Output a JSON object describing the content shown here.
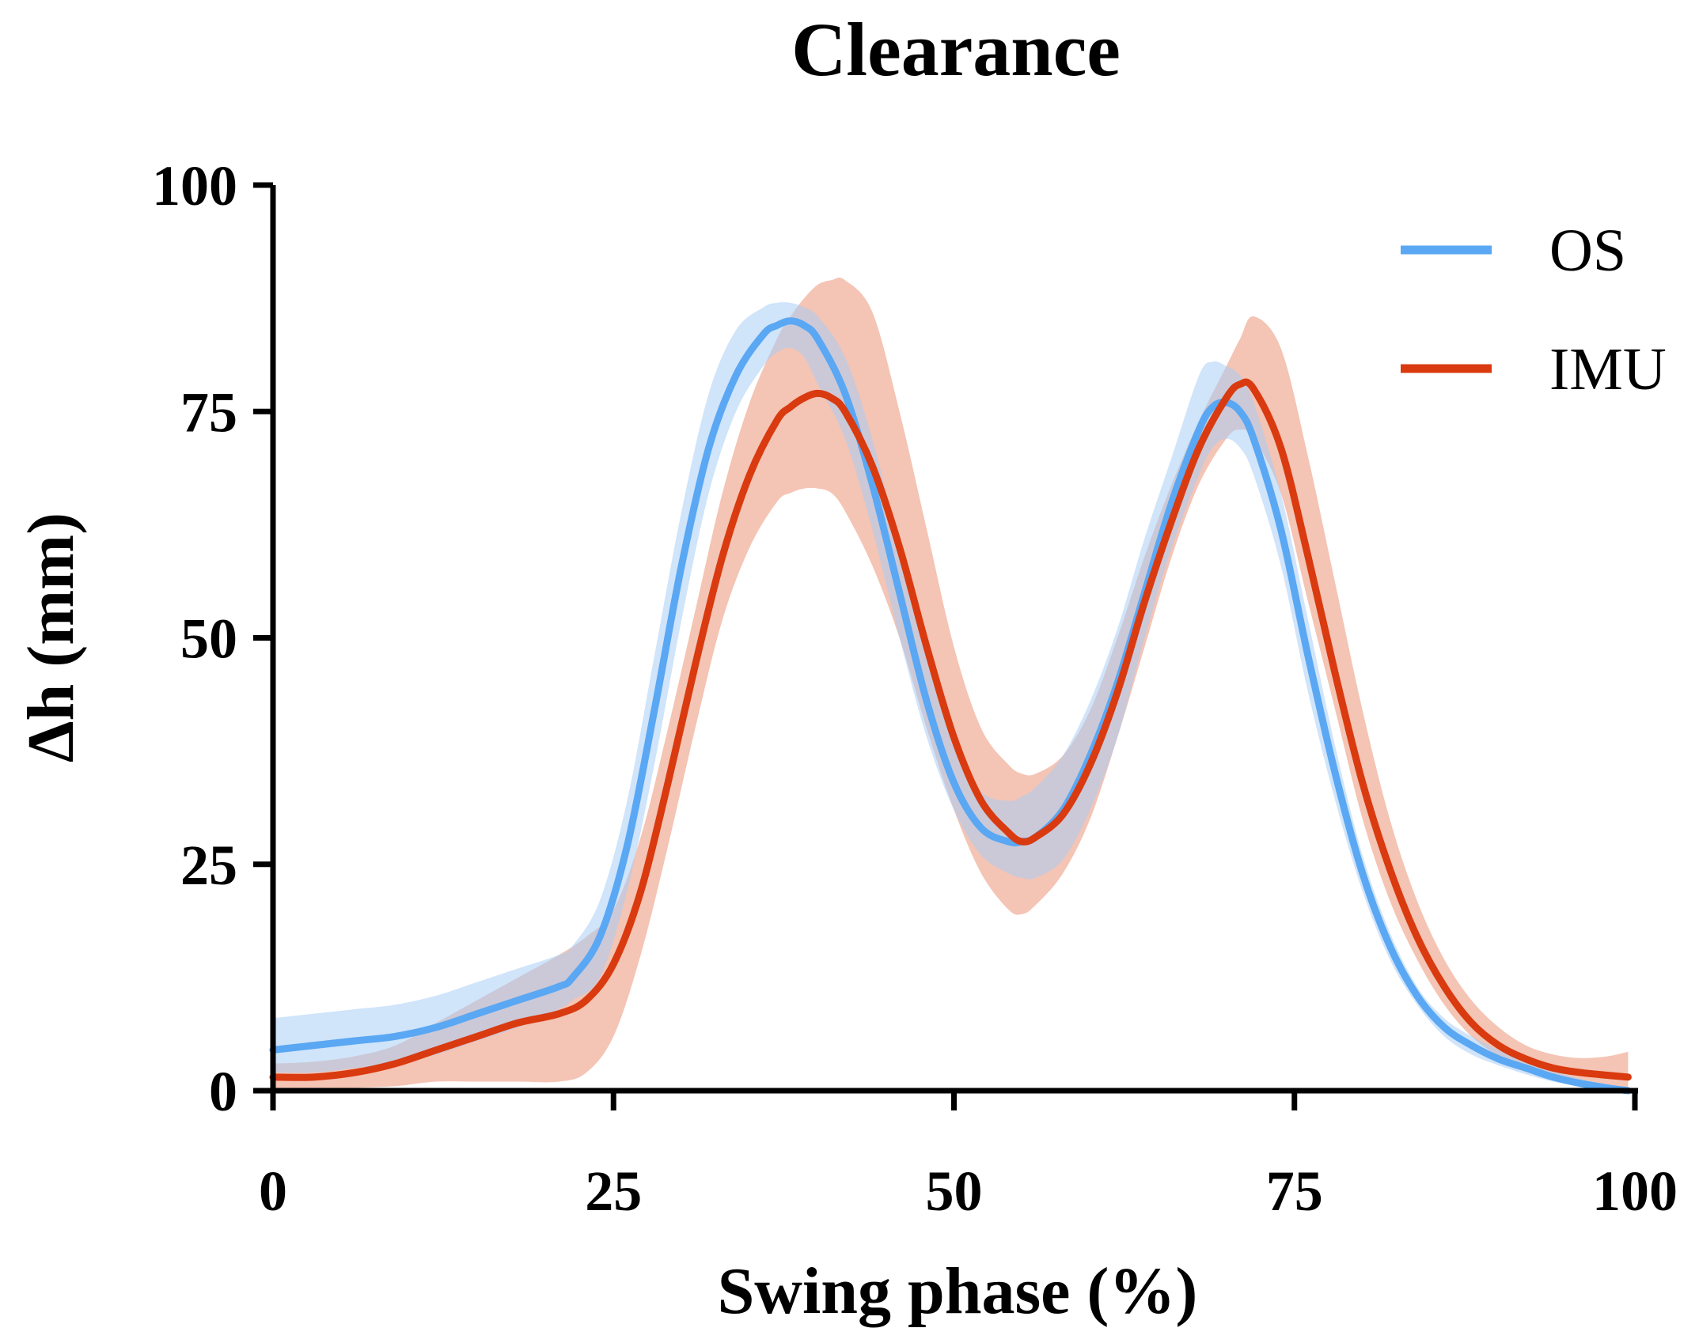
{
  "chart_data": {
    "type": "line",
    "title": "Clearance",
    "xlabel": "Swing phase (%)",
    "ylabel": "Δh (mm)",
    "xlim": [
      0,
      100
    ],
    "ylim": [
      0,
      100
    ],
    "xticks": [
      0,
      25,
      50,
      75,
      100
    ],
    "yticks": [
      0,
      25,
      50,
      75,
      100
    ],
    "xtick_labels": [
      "0",
      "25",
      "50",
      "75",
      "100"
    ],
    "ytick_labels": [
      "0",
      "25",
      "50",
      "75",
      "100"
    ],
    "legend_position": "top-right",
    "series": [
      {
        "name": "OS",
        "color": "#5aa7f3",
        "band_color": "#a9cdf5",
        "x": [
          0,
          3,
          6,
          9,
          12,
          15,
          18,
          21,
          22,
          24,
          26,
          28,
          30,
          32,
          34,
          36,
          37,
          38,
          39,
          40,
          42,
          44,
          46,
          48,
          50,
          52,
          54,
          55,
          56,
          58,
          60,
          62,
          64,
          66,
          68,
          69,
          70,
          71,
          72,
          74,
          76,
          78,
          80,
          82,
          84,
          86,
          88,
          90,
          92,
          94,
          96,
          98,
          99.5
        ],
        "values": [
          4.5,
          5,
          5.5,
          6,
          7,
          8.5,
          10,
          11.5,
          12.5,
          17,
          27,
          42,
          58,
          71,
          79,
          83.5,
          84.5,
          85,
          84.5,
          83,
          77,
          67,
          55,
          43,
          34,
          29,
          27.5,
          27.5,
          28,
          31,
          37,
          45,
          55,
          65,
          73,
          75.5,
          76,
          75,
          72,
          62,
          48,
          35,
          24,
          16,
          10.5,
          7,
          5,
          3.5,
          2.5,
          1.5,
          0.8,
          0.3,
          0
        ],
        "lower": [
          2,
          2,
          2.5,
          3,
          4,
          5.5,
          7,
          9,
          10,
          12.5,
          22,
          36,
          52,
          66,
          75,
          80,
          81.5,
          82,
          81,
          78,
          72,
          62,
          50,
          39,
          31,
          26,
          24,
          23.5,
          23.5,
          25.5,
          31,
          39,
          50,
          60,
          68,
          71,
          72,
          71,
          68,
          58,
          44,
          32,
          22,
          14.5,
          9.5,
          6,
          4,
          2.8,
          1.8,
          1,
          0.5,
          0.2,
          0
        ],
        "upper": [
          8,
          8.5,
          9,
          9.5,
          10.5,
          12,
          13.5,
          15,
          16,
          21,
          32,
          48,
          64,
          77,
          84,
          86.5,
          87,
          87,
          86.5,
          85.5,
          81,
          72,
          60,
          48,
          38,
          33,
          32,
          32.5,
          33.5,
          37,
          43,
          51,
          61,
          70,
          79,
          80.5,
          80,
          79,
          76,
          66,
          52,
          38,
          26,
          17.5,
          11.5,
          8,
          6,
          4.5,
          3.2,
          2.2,
          1.3,
          0.7,
          0.3
        ]
      },
      {
        "name": "IMU",
        "color": "#d93a0f",
        "band_color": "#f0b09b",
        "x": [
          0,
          3,
          6,
          9,
          12,
          15,
          18,
          21,
          23,
          25,
          27,
          29,
          31,
          33,
          35,
          37,
          38,
          39,
          40,
          41,
          42,
          44,
          46,
          48,
          50,
          52,
          54,
          55,
          56,
          58,
          60,
          62,
          64,
          66,
          68,
          70,
          71,
          72,
          74,
          76,
          78,
          80,
          82,
          84,
          86,
          88,
          90,
          92,
          94,
          96,
          98,
          99.5
        ],
        "values": [
          1.5,
          1.5,
          2,
          3,
          4.5,
          6,
          7.5,
          8.5,
          10,
          14,
          22,
          34,
          47,
          59,
          68,
          74,
          75.5,
          76.5,
          77,
          76.5,
          75,
          69,
          60,
          49,
          39,
          32,
          28.5,
          27.5,
          28,
          30.5,
          36,
          44,
          54,
          63,
          71,
          76.5,
          78,
          77.5,
          71,
          59,
          46,
          34,
          24.5,
          17,
          11.5,
          7.5,
          5,
          3.5,
          2.5,
          2,
          1.7,
          1.5
        ],
        "lower": [
          0,
          0,
          0.3,
          0.5,
          1,
          1,
          1,
          1,
          2,
          6,
          15,
          27,
          40,
          52,
          60,
          65,
          66,
          66.5,
          66.5,
          66,
          64,
          58,
          50,
          40,
          31,
          24,
          20,
          19.5,
          20.5,
          24,
          30,
          39,
          49,
          59,
          67,
          72,
          73,
          72,
          66,
          54,
          42,
          30,
          21,
          14.5,
          9.5,
          6,
          3.8,
          2.2,
          1.2,
          0.6,
          0.3,
          0.2
        ],
        "upper": [
          3,
          3.2,
          3.8,
          5,
          7.5,
          10,
          12.5,
          15,
          17,
          20,
          28,
          40,
          53,
          66,
          76,
          83,
          85.5,
          87.5,
          89,
          89.5,
          89.5,
          86,
          75,
          62,
          49,
          40,
          36,
          35,
          35,
          37,
          42,
          50,
          59,
          67,
          74,
          80,
          83,
          85.5,
          82,
          70,
          56,
          42,
          30,
          21,
          14.5,
          10,
          7,
          5,
          4,
          3.6,
          3.8,
          4.3
        ]
      }
    ]
  }
}
